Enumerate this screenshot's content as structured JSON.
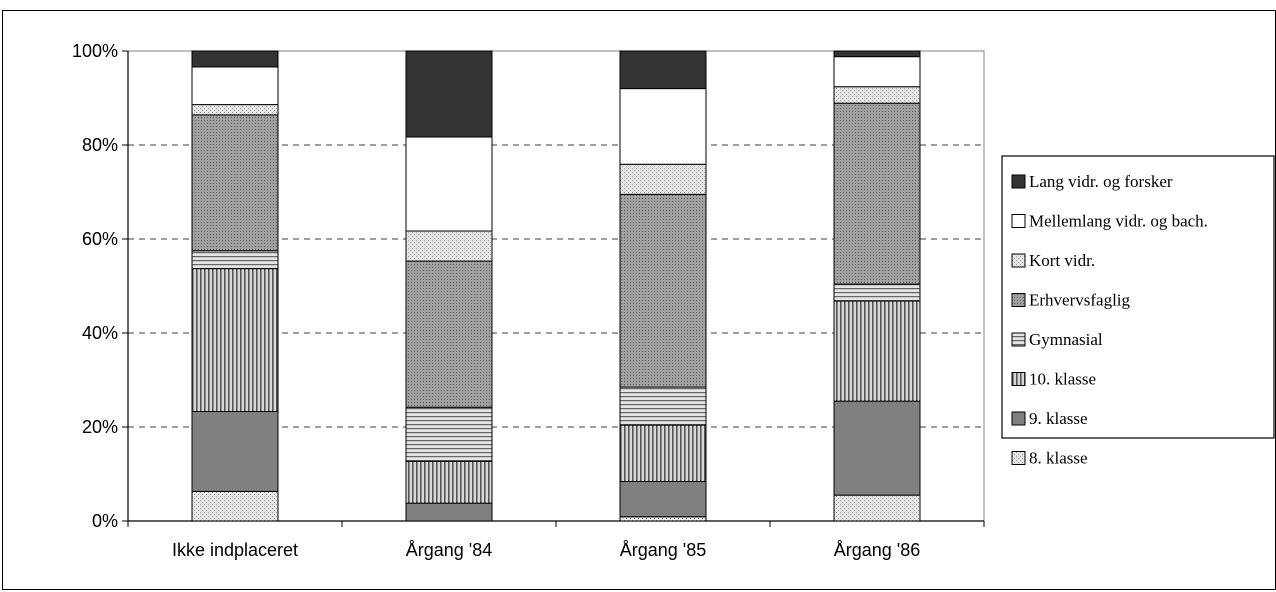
{
  "chart_data": {
    "type": "bar",
    "stacked": true,
    "percent": true,
    "categories": [
      "Ikke indplaceret",
      "Årgang '84",
      "Årgang '85",
      "Årgang '86"
    ],
    "series": [
      {
        "name": "8. klasse",
        "values": [
          6.3,
          0,
          0.9,
          5.5
        ],
        "fill": "pat-light"
      },
      {
        "name": "9. klasse",
        "values": [
          17.0,
          3.8,
          7.5,
          20.0
        ],
        "fill": "#808080"
      },
      {
        "name": "10. klasse",
        "values": [
          30.4,
          8.9,
          12.0,
          21.3
        ],
        "fill": "pat-vert"
      },
      {
        "name": "Gymnasial",
        "values": [
          3.8,
          11.5,
          8.1,
          3.6
        ],
        "fill": "pat-horiz"
      },
      {
        "name": "Erhvervsfaglig",
        "values": [
          28.9,
          31.1,
          41.0,
          38.5
        ],
        "fill": "pat-dense"
      },
      {
        "name": "Kort vidr.",
        "values": [
          2.2,
          6.4,
          6.4,
          3.5
        ],
        "fill": "pat-light"
      },
      {
        "name": "Mellemlang vidr. og bach.",
        "values": [
          8.0,
          20.0,
          16.1,
          6.4
        ],
        "fill": "#ffffff"
      },
      {
        "name": "Lang vidr. og forsker",
        "values": [
          3.4,
          18.3,
          8.0,
          1.2
        ],
        "fill": "#333333"
      }
    ],
    "yticks": [
      "0%",
      "20%",
      "40%",
      "60%",
      "80%",
      "100%"
    ],
    "ylim": [
      0,
      100
    ],
    "grid": "dashed-horizontal",
    "legend_position": "right",
    "legend_order": [
      "Lang vidr. og forsker",
      "Mellemlang vidr. og bach.",
      "Kort vidr.",
      "Erhvervsfaglig",
      "Gymnasial",
      "10. klasse",
      "9. klasse",
      "8. klasse"
    ]
  }
}
